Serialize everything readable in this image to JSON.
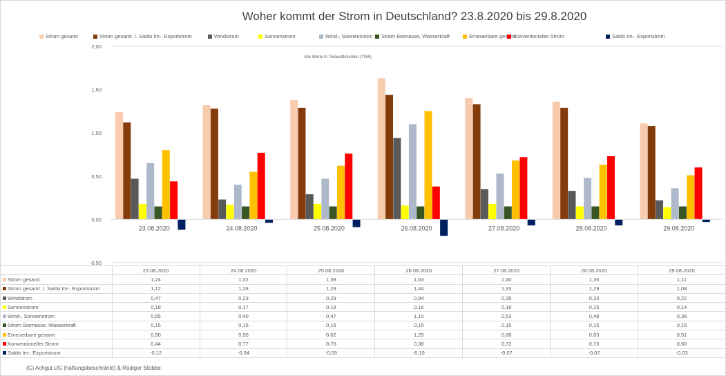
{
  "chart_data": {
    "type": "bar",
    "title": "Woher kommt der Strom in Deutschland? 23.8.2020 bis 29.8.2020",
    "subtitle": "Alle Werte in Terawattstunden (TWh)",
    "categories": [
      "23.08.2020",
      "24.08.2020",
      "25.08.2020",
      "26.08.2020",
      "27.08.2020",
      "28.08.2020",
      "29.08.2020"
    ],
    "ylim": [
      -0.5,
      2.0
    ],
    "yticks": [
      "2,00",
      "1,50",
      "1,00",
      "0,50",
      "0,00",
      "-0,50"
    ],
    "ytick_values": [
      2.0,
      1.5,
      1.0,
      0.5,
      0.0,
      -0.5
    ],
    "grid": false,
    "legend_position": "top",
    "series": [
      {
        "name": "Strom gesamt",
        "color": "#f8cbad",
        "values": [
          1.24,
          1.32,
          1.38,
          1.63,
          1.4,
          1.36,
          1.11
        ],
        "labels": [
          "1,24",
          "1,32",
          "1,38",
          "1,63",
          "1,40",
          "1,36",
          "1,11"
        ]
      },
      {
        "name": "Strom gesamt ./. Saldo Im-, Exportstrom",
        "color": "#843c0c",
        "values": [
          1.12,
          1.28,
          1.29,
          1.44,
          1.33,
          1.29,
          1.08
        ],
        "labels": [
          "1,12",
          "1,28",
          "1,29",
          "1,44",
          "1,33",
          "1,29",
          "1,08"
        ]
      },
      {
        "name": "Windstrom",
        "color": "#595959",
        "values": [
          0.47,
          0.23,
          0.29,
          0.94,
          0.35,
          0.33,
          0.22
        ],
        "labels": [
          "0,47",
          "0,23",
          "0,29",
          "0,94",
          "0,35",
          "0,33",
          "0,22"
        ]
      },
      {
        "name": "Sonnenstrom",
        "color": "#ffff00",
        "values": [
          0.18,
          0.17,
          0.18,
          0.16,
          0.18,
          0.15,
          0.14
        ],
        "labels": [
          "0,18",
          "0,17",
          "0,18",
          "0,16",
          "0,18",
          "0,15",
          "0,14"
        ]
      },
      {
        "name": "Wind-, Sonnenstrom",
        "color": "#adb9ca",
        "values": [
          0.65,
          0.4,
          0.47,
          1.1,
          0.53,
          0.48,
          0.36
        ],
        "labels": [
          "0,65",
          "0,40",
          "0,47",
          "1,10",
          "0,53",
          "0,48",
          "0,36"
        ]
      },
      {
        "name": "Strom Biomasse, Wasserkraft",
        "color": "#375623",
        "values": [
          0.15,
          0.15,
          0.15,
          0.15,
          0.15,
          0.15,
          0.15
        ],
        "labels": [
          "0,15",
          "0,15",
          "0,15",
          "0,15",
          "0,15",
          "0,15",
          "0,15"
        ]
      },
      {
        "name": "Erneuerbare gesamt",
        "color": "#ffc000",
        "values": [
          0.8,
          0.55,
          0.62,
          1.25,
          0.68,
          0.63,
          0.51
        ],
        "labels": [
          "0,80",
          "0,55",
          "0,62",
          "1,25",
          "0,68",
          "0,63",
          "0,51"
        ]
      },
      {
        "name": "Konventioneller Strom",
        "color": "#ff0000",
        "values": [
          0.44,
          0.77,
          0.76,
          0.38,
          0.72,
          0.73,
          0.6
        ],
        "labels": [
          "0,44",
          "0,77",
          "0,76",
          "0,38",
          "0,72",
          "0,73",
          "0,60"
        ]
      },
      {
        "name": "Saldo Im-, Exportstrom",
        "color": "#002060",
        "values": [
          -0.12,
          -0.04,
          -0.09,
          -0.19,
          -0.07,
          -0.07,
          -0.03
        ],
        "labels": [
          "-0,12",
          "-0,04",
          "-0,09",
          "-0,19",
          "-0,07",
          "-0,07",
          "-0,03"
        ]
      }
    ]
  },
  "footer": "(C) Achgut UG (haftungsbeschränkt) & Rüdiger Stobbe"
}
